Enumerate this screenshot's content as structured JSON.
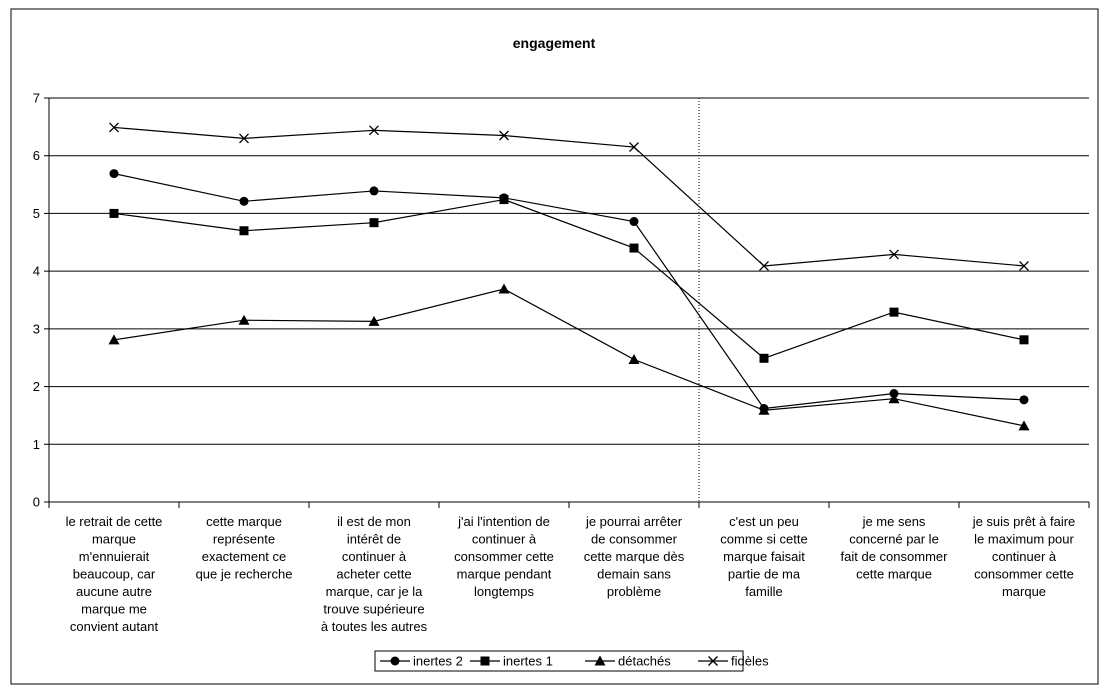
{
  "chart_data": {
    "type": "line",
    "title": "engagement",
    "xlabel": "",
    "ylabel": "",
    "ylim": [
      0,
      7
    ],
    "yticks": [
      "0",
      "1",
      "2",
      "3",
      "4",
      "5",
      "6",
      "7"
    ],
    "grid": true,
    "legend_position": "bottom",
    "divider_after_category": 5,
    "categories": [
      "le retrait de cette marque m'ennuierait beaucoup, car aucune autre marque me convient autant",
      "cette marque représente exactement ce que je recherche",
      "il est de mon intérêt de continuer à acheter cette marque, car je la trouve supérieure à toutes les autres",
      "j'ai l'intention de continuer à consommer cette marque pendant longtemps",
      "je pourrai arrêter de consommer cette marque dès demain sans problème",
      "c'est un peu comme si cette marque faisait partie de ma famille",
      "je me sens concerné par le fait de consommer cette marque",
      "je suis prêt à faire le maximum pour continuer à consommer cette marque"
    ],
    "category_lines": [
      [
        "le retrait de cette",
        "marque",
        "m'ennuierait",
        "beaucoup, car",
        "aucune autre",
        "marque me",
        "convient autant"
      ],
      [
        "cette marque",
        "représente",
        "exactement ce",
        "que je recherche"
      ],
      [
        "il est de mon",
        "intérêt de",
        "continuer à",
        "acheter cette",
        "marque, car je la",
        "trouve supérieure",
        "à toutes les autres"
      ],
      [
        "j'ai l'intention de",
        "continuer à",
        "consommer cette",
        "marque pendant",
        "longtemps"
      ],
      [
        "je pourrai arrêter",
        "de consommer",
        "cette marque dès",
        "demain sans",
        "problème"
      ],
      [
        "c'est un peu",
        "comme si cette",
        "marque faisait",
        "partie de ma",
        "famille"
      ],
      [
        "je me sens",
        "concerné par le",
        "fait de consommer",
        "cette marque"
      ],
      [
        "je suis prêt à faire",
        "le maximum pour",
        "continuer à",
        "consommer cette",
        "marque"
      ]
    ],
    "series": [
      {
        "name": "inertes 2",
        "marker": "circle",
        "color": "#000000",
        "values": [
          5.69,
          5.21,
          5.39,
          5.27,
          4.86,
          1.62,
          1.88,
          1.77
        ]
      },
      {
        "name": "inertes 1",
        "marker": "square",
        "color": "#000000",
        "values": [
          5.0,
          4.7,
          4.84,
          5.24,
          4.4,
          2.49,
          3.29,
          2.81
        ]
      },
      {
        "name": "détachés",
        "marker": "triangle",
        "color": "#000000",
        "values": [
          2.81,
          3.15,
          3.13,
          3.69,
          2.47,
          1.59,
          1.79,
          1.32
        ]
      },
      {
        "name": "fidèles",
        "marker": "x",
        "color": "#000000",
        "values": [
          6.49,
          6.3,
          6.44,
          6.35,
          6.15,
          4.09,
          4.29,
          4.09
        ]
      }
    ]
  }
}
